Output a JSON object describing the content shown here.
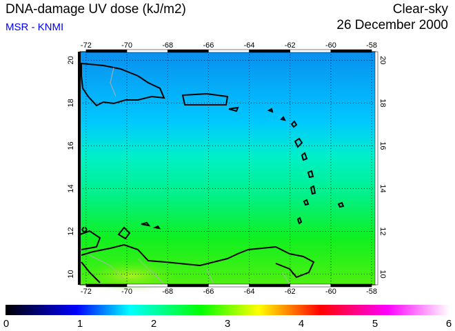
{
  "header": {
    "title": "DNA-damage UV dose (kJ/m2)",
    "source": "MSR - KNMI",
    "condition": "Clear-sky",
    "date": "26 December 2000"
  },
  "map": {
    "lon_labels": [
      "-72",
      "-70",
      "-68",
      "-66",
      "-64",
      "-62",
      "-60",
      "-58"
    ],
    "lat_labels": [
      "20",
      "18",
      "16",
      "14",
      "12",
      "10"
    ],
    "lon_range": [
      -72.3,
      -57.8
    ],
    "lat_range": [
      9.5,
      20.4
    ]
  },
  "colorbar": {
    "labels": [
      "0",
      "1",
      "2",
      "3",
      "4",
      "5",
      "6"
    ],
    "range": [
      0,
      6
    ],
    "colors": [
      "#000000",
      "#0000ff",
      "#00ffff",
      "#00ff00",
      "#ffff00",
      "#ff0000",
      "#ff00ff",
      "#ffffff"
    ]
  }
}
